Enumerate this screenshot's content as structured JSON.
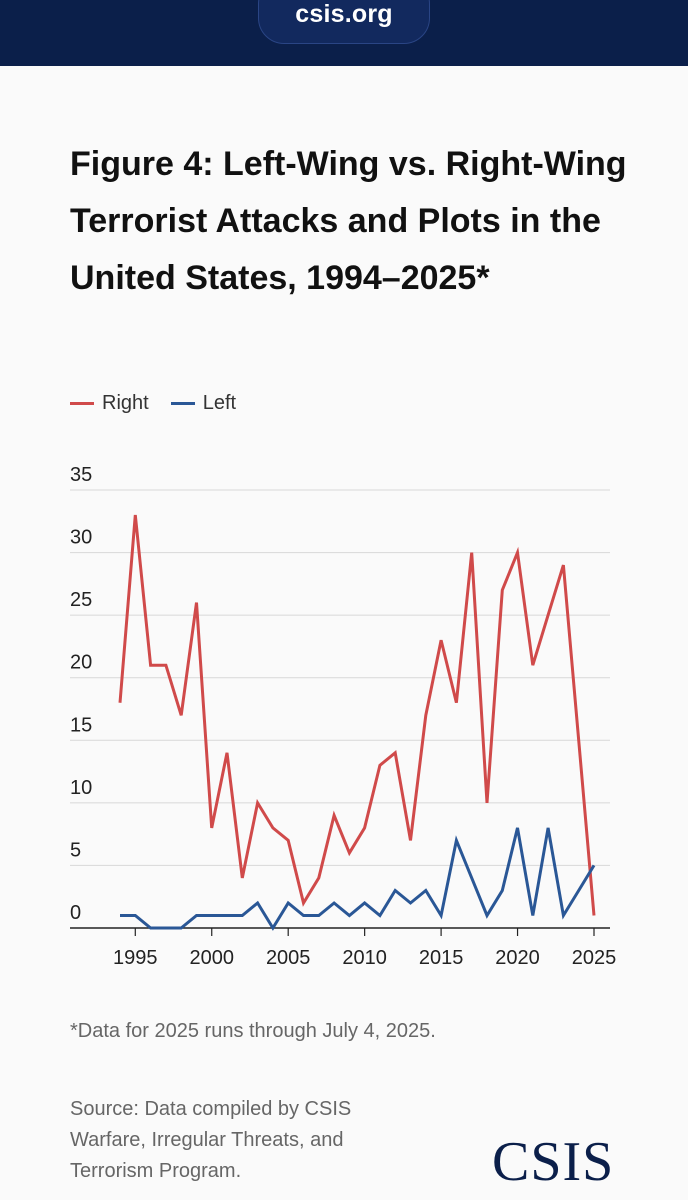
{
  "header": {
    "url": "csis.org"
  },
  "chart_data": {
    "type": "line",
    "title": "Figure 4: Left-Wing vs. Right-Wing Terrorist Attacks and Plots in the United States, 1994–2025*",
    "x": [
      1994,
      1995,
      1996,
      1997,
      1998,
      1999,
      2000,
      2001,
      2002,
      2003,
      2004,
      2005,
      2006,
      2007,
      2008,
      2009,
      2010,
      2011,
      2012,
      2013,
      2014,
      2015,
      2016,
      2017,
      2018,
      2019,
      2020,
      2021,
      2022,
      2023,
      2024,
      2025
    ],
    "series": [
      {
        "name": "Right",
        "color": "#d04a4a",
        "values": [
          18,
          33,
          21,
          21,
          17,
          26,
          8,
          14,
          4,
          10,
          8,
          7,
          2,
          4,
          9,
          6,
          8,
          13,
          14,
          7,
          17,
          23,
          18,
          30,
          10,
          27,
          30,
          21,
          25,
          29,
          15,
          1
        ]
      },
      {
        "name": "Left",
        "color": "#2a5796",
        "values": [
          1,
          1,
          0,
          0,
          0,
          1,
          1,
          1,
          1,
          2,
          0,
          2,
          1,
          1,
          2,
          1,
          2,
          1,
          3,
          2,
          3,
          1,
          7,
          4,
          1,
          3,
          8,
          1,
          8,
          1,
          3,
          5
        ]
      }
    ],
    "ylim": [
      0,
      35
    ],
    "y_ticks": [
      "0",
      "5",
      "10",
      "15",
      "20",
      "25",
      "30",
      "35"
    ],
    "x_ticks": [
      1995,
      2000,
      2005,
      2010,
      2015,
      2020,
      2025
    ],
    "x_tick_labels": [
      "1995",
      "2000",
      "2005",
      "2010",
      "2015",
      "2020",
      "2025"
    ],
    "grid": true,
    "legend_position": "top-left",
    "xlabel": "",
    "ylabel": ""
  },
  "footnote": "*Data for 2025 runs through July 4, 2025.",
  "source": "Source: Data compiled by CSIS Warfare, Irregular Threats, and Terrorism Program.",
  "logo": "CSIS"
}
